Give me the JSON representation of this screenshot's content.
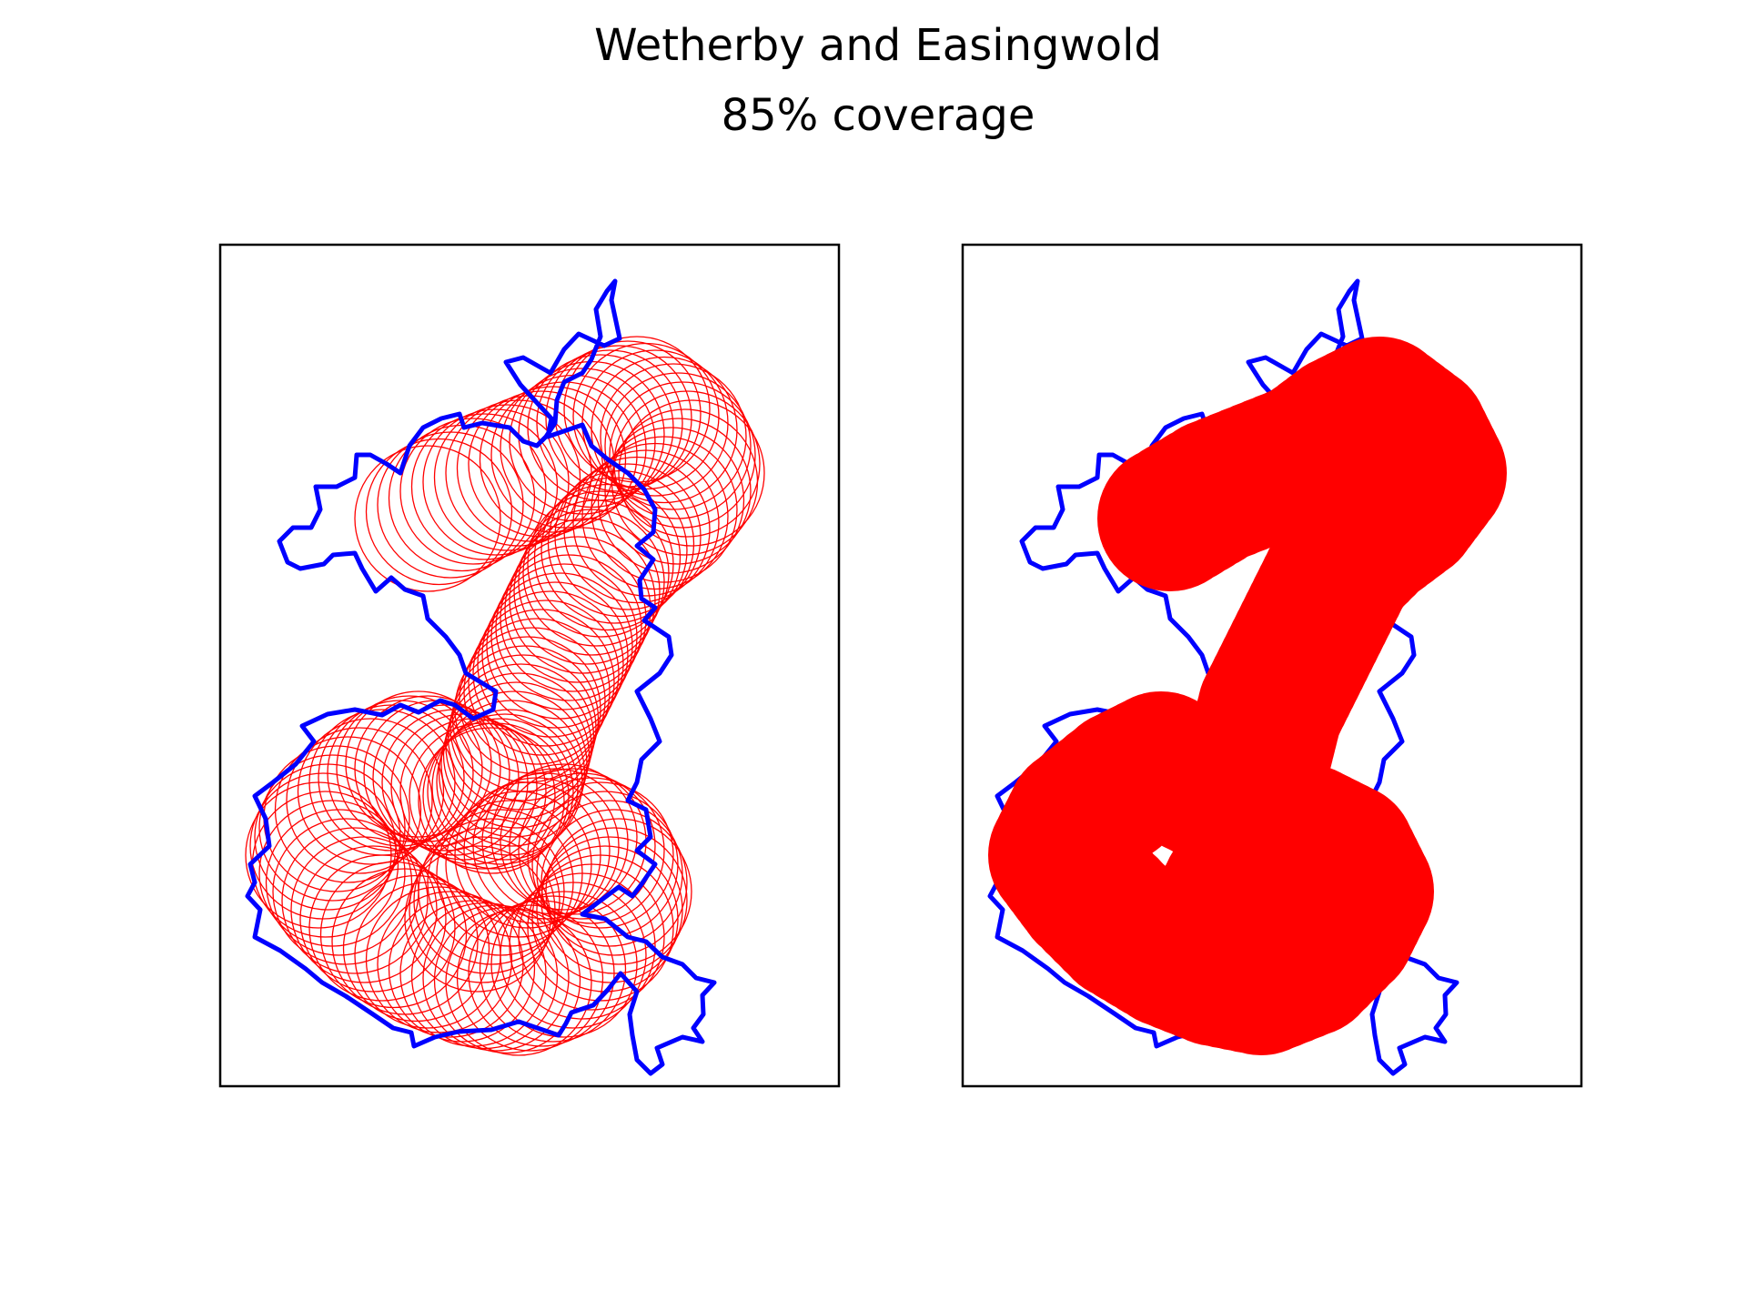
{
  "figure": {
    "title_line1": "Wetherby and Easingwold",
    "title_line2": "85% coverage"
  },
  "colors": {
    "boundary": "#0000ff",
    "coverage": "#ff0000",
    "axes_frame": "#000000",
    "background": "#ffffff"
  },
  "chart_data": [
    {
      "type": "map",
      "panel": "left",
      "style": "circle-outlines",
      "title": "",
      "region": "Wetherby and Easingwold",
      "coverage_percent": 85,
      "legend": "none",
      "grid": false
    },
    {
      "type": "map",
      "panel": "right",
      "style": "filled-union",
      "title": "",
      "region": "Wetherby and Easingwold",
      "coverage_percent": 85,
      "legend": "none",
      "grid": false
    }
  ]
}
